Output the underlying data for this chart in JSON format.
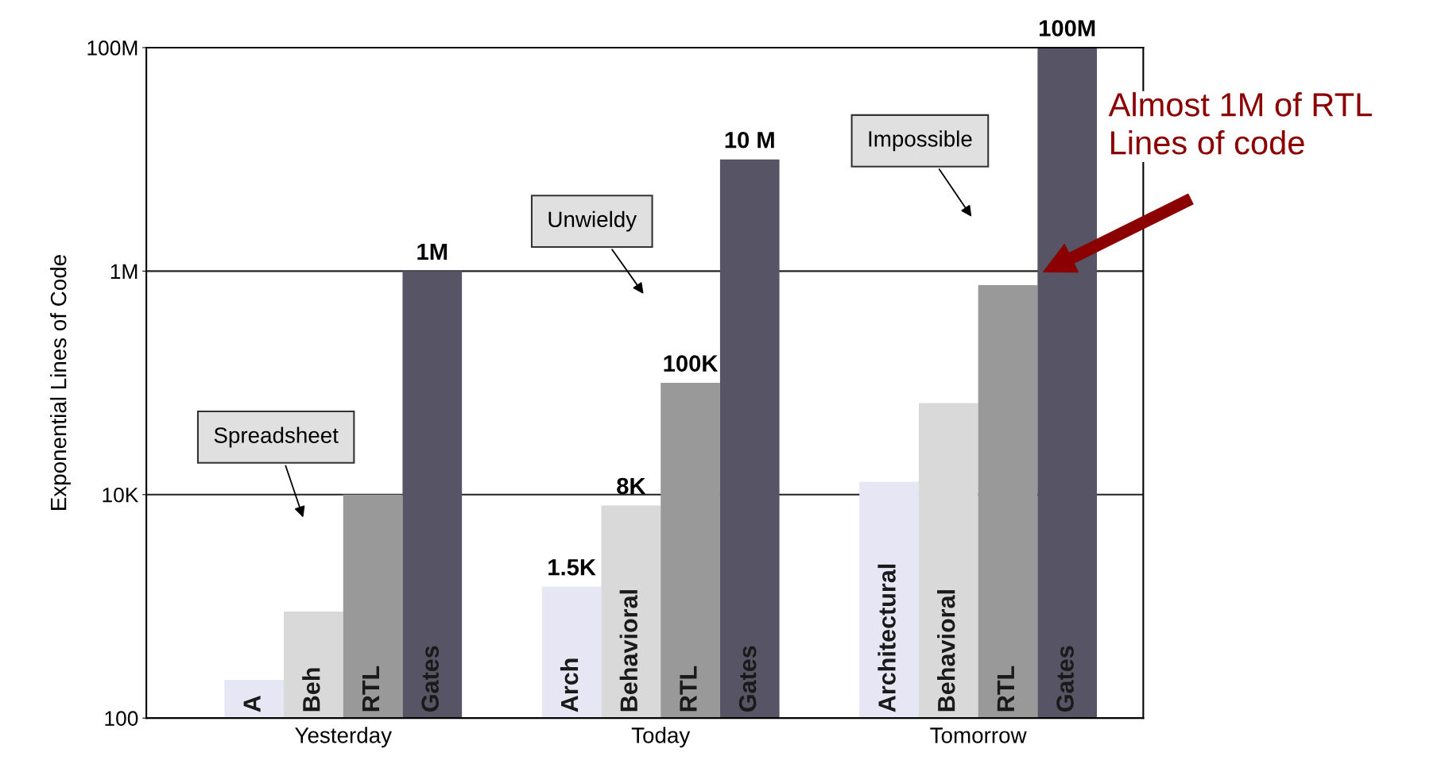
{
  "chart_data": {
    "type": "bar",
    "log": "y",
    "ylabel": "Exponential Lines of Code",
    "categories": [
      "Yesterday",
      "Today",
      "Tomorrow"
    ],
    "series": [
      {
        "color": "#e6e6f5",
        "values": [
          220,
          1500,
          13000
        ],
        "value_labels": [
          null,
          "1.5K",
          null
        ]
      },
      {
        "color": "#d9d9d9",
        "values": [
          900,
          8000,
          66000
        ],
        "value_labels": [
          null,
          "8K",
          null
        ]
      },
      {
        "color": "#999999",
        "values": [
          10000,
          100000,
          750000
        ],
        "value_labels": [
          null,
          "100K",
          null
        ]
      },
      {
        "color": "#575565",
        "values": [
          1000000,
          10000000,
          100000000
        ],
        "value_labels": [
          "1M",
          "10 M",
          "100M"
        ]
      }
    ],
    "ylim": [
      100,
      100000000
    ],
    "yticks": [
      {
        "value": 100,
        "label": "100"
      },
      {
        "value": 10000,
        "label": "10K"
      },
      {
        "value": 1000000,
        "label": "1M"
      },
      {
        "value": 100000000,
        "label": "100M"
      }
    ],
    "grid": "y",
    "legend": false,
    "annotations": [
      "A",
      "Beh",
      "RTL",
      "Gates",
      "Arch",
      "Behavioral",
      "RTL",
      "Gates",
      "Architectural",
      "Behavioral",
      "RTL",
      "Gates",
      "Spreadsheet",
      "Unwieldy",
      "Impossible",
      "Almost 1M of RTL\nLines of code"
    ]
  }
}
